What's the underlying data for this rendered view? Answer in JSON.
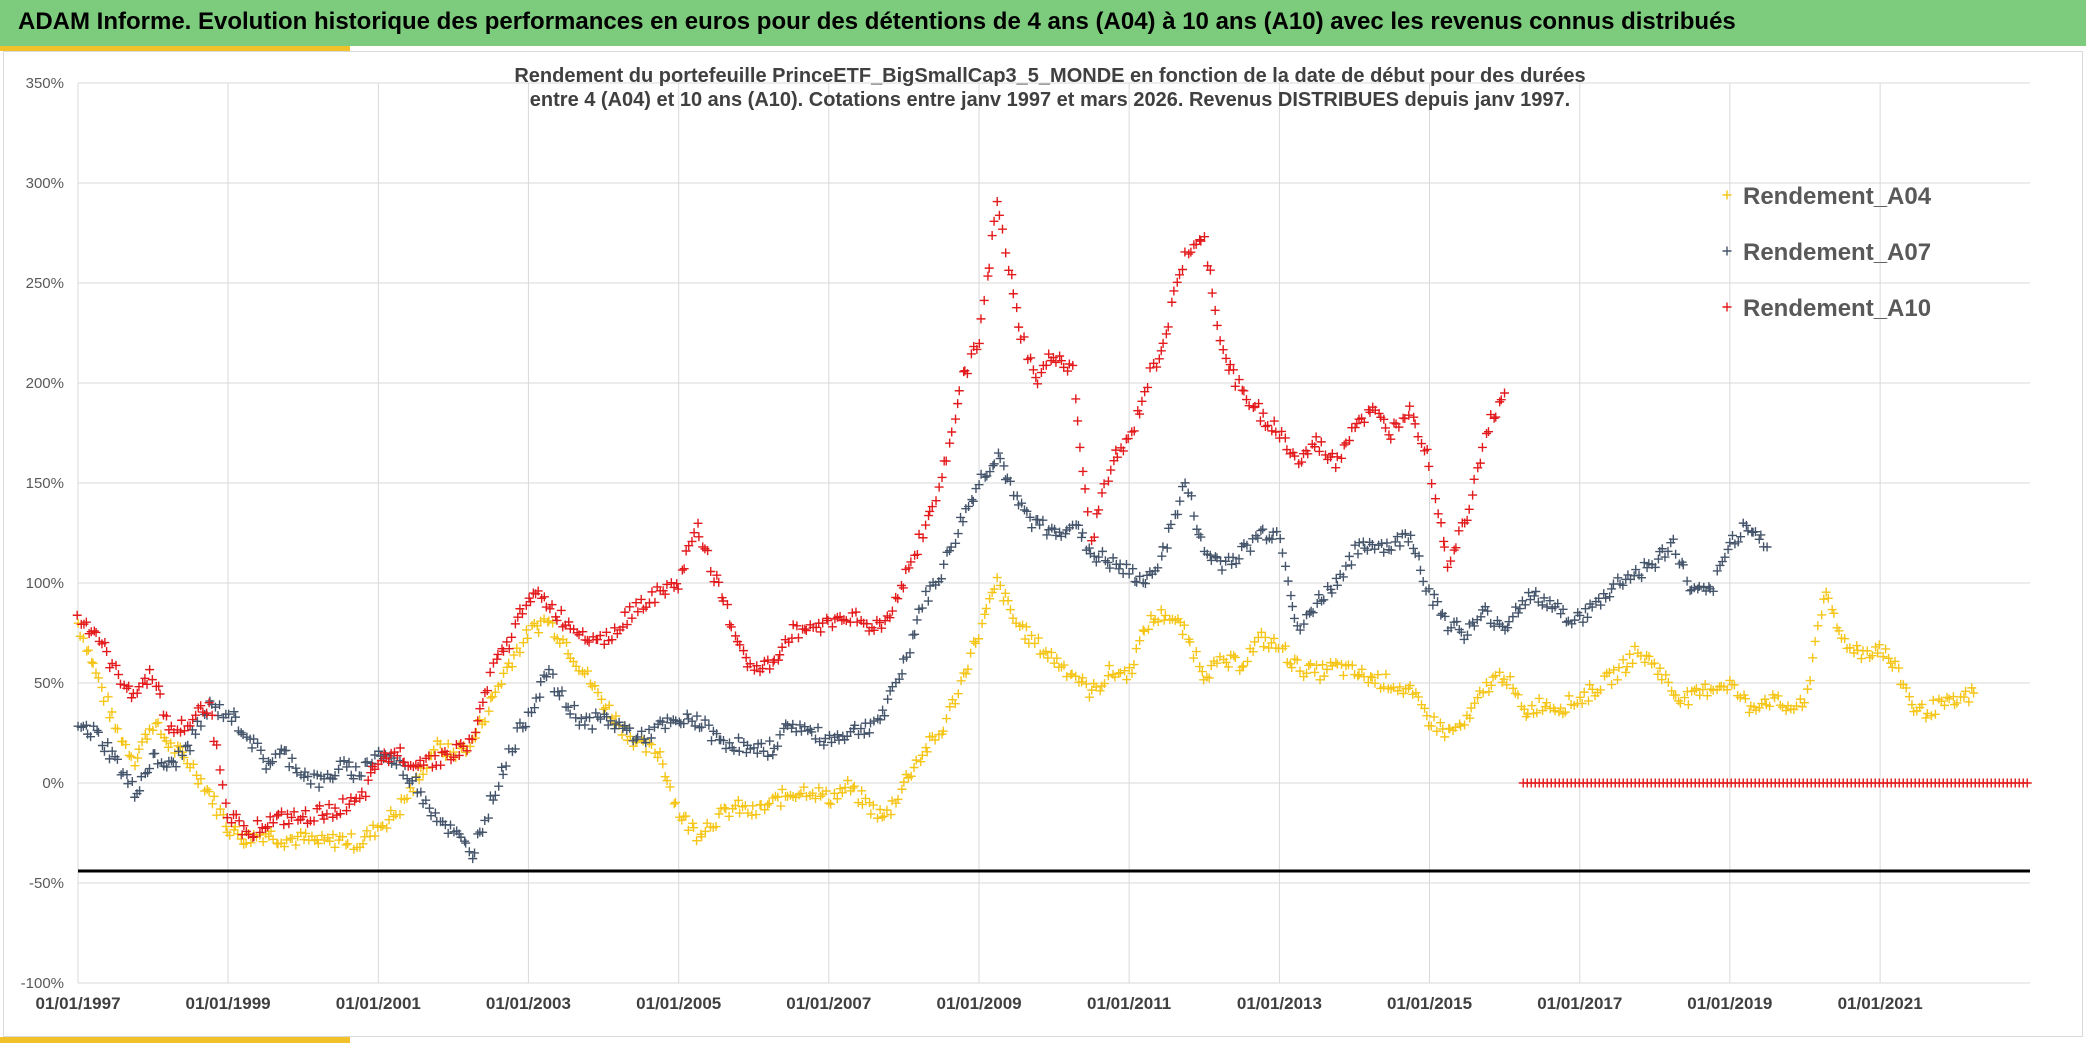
{
  "header": {
    "title": "ADAM Informe. Evolution historique des performances en euros pour des détentions de 4 ans (A04) à 10 ans (A10) avec les revenus connus distribués"
  },
  "colors": {
    "header_bg": "#7dcb7d",
    "accent": "#f2c02a",
    "A04": "#f5c518",
    "A07": "#44546a",
    "A10": "#e31a1c",
    "threshold": "#000000"
  },
  "chart_data": {
    "type": "scatter",
    "title_lines": [
      "Rendement du portefeuille PrinceETF_BigSmallCap3_5_MONDE  en fonction de la date de début pour des durées",
      "entre 4 (A04) et 10 ans (A10). Cotations entre janv 1997 et mars 2026. Revenus DISTRIBUES depuis janv 1997."
    ],
    "xlabel": "",
    "ylabel": "",
    "x_range": [
      "1997-01-01",
      "2022-12-31"
    ],
    "x_ticks": [
      "01/01/1997",
      "01/01/1999",
      "01/01/2001",
      "01/01/2003",
      "01/01/2005",
      "01/01/2007",
      "01/01/2009",
      "01/01/2011",
      "01/01/2013",
      "01/01/2015",
      "01/01/2017",
      "01/01/2019",
      "01/01/2021"
    ],
    "ylim": [
      -100,
      350
    ],
    "y_ticks": [
      -100,
      -50,
      0,
      50,
      100,
      150,
      200,
      250,
      300,
      350
    ],
    "y_tick_labels": [
      "-100%",
      "-50%",
      "0%",
      "50%",
      "100%",
      "150%",
      "200%",
      "250%",
      "300%",
      "350%"
    ],
    "grid": true,
    "legend_position": "top-right",
    "marker": "+",
    "reference_line_y": -44,
    "series": [
      {
        "name": "Rendement_A04",
        "color": "#f5c518",
        "points": [
          [
            "1997-01-01",
            80
          ],
          [
            "1997-04-01",
            55
          ],
          [
            "1997-07-01",
            28
          ],
          [
            "1997-10-01",
            12
          ],
          [
            "1998-01-01",
            30
          ],
          [
            "1998-04-01",
            18
          ],
          [
            "1998-07-01",
            10
          ],
          [
            "1998-10-01",
            -5
          ],
          [
            "1999-01-01",
            -22
          ],
          [
            "1999-04-01",
            -28
          ],
          [
            "1999-07-01",
            -25
          ],
          [
            "1999-10-01",
            -28
          ],
          [
            "2000-01-01",
            -28
          ],
          [
            "2000-04-01",
            -30
          ],
          [
            "2000-07-01",
            -28
          ],
          [
            "2000-10-01",
            -30
          ],
          [
            "2001-01-01",
            -22
          ],
          [
            "2001-04-01",
            -15
          ],
          [
            "2001-07-01",
            0
          ],
          [
            "2001-10-01",
            18
          ],
          [
            "2002-01-01",
            15
          ],
          [
            "2002-04-01",
            20
          ],
          [
            "2002-07-01",
            40
          ],
          [
            "2002-10-01",
            60
          ],
          [
            "2003-01-01",
            75
          ],
          [
            "2003-04-01",
            82
          ],
          [
            "2003-07-01",
            70
          ],
          [
            "2003-10-01",
            55
          ],
          [
            "2004-01-01",
            40
          ],
          [
            "2004-04-01",
            28
          ],
          [
            "2004-07-01",
            18
          ],
          [
            "2004-10-01",
            15
          ],
          [
            "2005-01-01",
            -15
          ],
          [
            "2005-04-01",
            -25
          ],
          [
            "2005-07-01",
            -18
          ],
          [
            "2005-10-01",
            -12
          ],
          [
            "2006-01-01",
            -15
          ],
          [
            "2006-04-01",
            -10
          ],
          [
            "2006-07-01",
            -5
          ],
          [
            "2006-10-01",
            -3
          ],
          [
            "2007-01-01",
            -8
          ],
          [
            "2007-04-01",
            -2
          ],
          [
            "2007-07-01",
            -10
          ],
          [
            "2007-10-01",
            -18
          ],
          [
            "2008-01-01",
            0
          ],
          [
            "2008-04-01",
            15
          ],
          [
            "2008-07-01",
            25
          ],
          [
            "2008-10-01",
            50
          ],
          [
            "2009-01-01",
            75
          ],
          [
            "2009-04-01",
            100
          ],
          [
            "2009-07-01",
            80
          ],
          [
            "2009-10-01",
            70
          ],
          [
            "2010-01-01",
            62
          ],
          [
            "2010-04-01",
            55
          ],
          [
            "2010-07-01",
            45
          ],
          [
            "2010-10-01",
            55
          ],
          [
            "2011-01-01",
            55
          ],
          [
            "2011-04-01",
            80
          ],
          [
            "2011-07-01",
            85
          ],
          [
            "2011-10-01",
            75
          ],
          [
            "2012-01-01",
            55
          ],
          [
            "2012-04-01",
            60
          ],
          [
            "2012-07-01",
            60
          ],
          [
            "2012-10-01",
            72
          ],
          [
            "2013-01-01",
            68
          ],
          [
            "2013-04-01",
            58
          ],
          [
            "2013-07-01",
            55
          ],
          [
            "2013-10-01",
            58
          ],
          [
            "2014-01-01",
            55
          ],
          [
            "2014-04-01",
            52
          ],
          [
            "2014-07-01",
            50
          ],
          [
            "2014-10-01",
            45
          ],
          [
            "2015-01-01",
            32
          ],
          [
            "2015-04-01",
            25
          ],
          [
            "2015-07-01",
            30
          ],
          [
            "2015-10-01",
            48
          ],
          [
            "2016-01-01",
            55
          ],
          [
            "2016-04-01",
            35
          ],
          [
            "2016-07-01",
            40
          ],
          [
            "2016-10-01",
            38
          ],
          [
            "2017-01-01",
            42
          ],
          [
            "2017-04-01",
            48
          ],
          [
            "2017-07-01",
            55
          ],
          [
            "2017-10-01",
            65
          ],
          [
            "2018-01-01",
            60
          ],
          [
            "2018-04-01",
            45
          ],
          [
            "2018-07-01",
            42
          ],
          [
            "2018-10-01",
            48
          ],
          [
            "2019-01-01",
            50
          ],
          [
            "2019-04-01",
            38
          ],
          [
            "2019-07-01",
            42
          ],
          [
            "2019-10-01",
            38
          ],
          [
            "2020-01-01",
            38
          ],
          [
            "2020-04-01",
            95
          ],
          [
            "2020-07-01",
            72
          ],
          [
            "2020-10-01",
            65
          ],
          [
            "2021-01-01",
            68
          ],
          [
            "2021-04-01",
            55
          ],
          [
            "2021-07-01",
            35
          ],
          [
            "2021-10-01",
            38
          ],
          [
            "2022-01-01",
            40
          ],
          [
            "2022-04-01",
            45
          ]
        ]
      },
      {
        "name": "Rendement_A07",
        "color": "#44546a",
        "points": [
          [
            "1997-01-01",
            28
          ],
          [
            "1997-04-01",
            25
          ],
          [
            "1997-07-01",
            12
          ],
          [
            "1997-10-01",
            -5
          ],
          [
            "1998-01-01",
            12
          ],
          [
            "1998-04-01",
            8
          ],
          [
            "1998-07-01",
            20
          ],
          [
            "1998-10-01",
            38
          ],
          [
            "1999-01-01",
            35
          ],
          [
            "1999-04-01",
            25
          ],
          [
            "1999-07-01",
            10
          ],
          [
            "1999-10-01",
            15
          ],
          [
            "2000-01-01",
            5
          ],
          [
            "2000-04-01",
            0
          ],
          [
            "2000-07-01",
            8
          ],
          [
            "2000-10-01",
            5
          ],
          [
            "2001-01-01",
            15
          ],
          [
            "2001-04-01",
            10
          ],
          [
            "2001-07-01",
            0
          ],
          [
            "2001-10-01",
            -15
          ],
          [
            "2002-01-01",
            -25
          ],
          [
            "2002-04-01",
            -35
          ],
          [
            "2002-07-01",
            -10
          ],
          [
            "2002-10-01",
            15
          ],
          [
            "2003-01-01",
            35
          ],
          [
            "2003-04-01",
            55
          ],
          [
            "2003-07-01",
            40
          ],
          [
            "2003-10-01",
            30
          ],
          [
            "2004-01-01",
            32
          ],
          [
            "2004-04-01",
            28
          ],
          [
            "2004-07-01",
            22
          ],
          [
            "2004-10-01",
            28
          ],
          [
            "2005-01-01",
            30
          ],
          [
            "2005-04-01",
            32
          ],
          [
            "2005-07-01",
            22
          ],
          [
            "2005-10-01",
            20
          ],
          [
            "2006-01-01",
            15
          ],
          [
            "2006-04-01",
            18
          ],
          [
            "2006-07-01",
            30
          ],
          [
            "2006-10-01",
            25
          ],
          [
            "2007-01-01",
            22
          ],
          [
            "2007-04-01",
            25
          ],
          [
            "2007-07-01",
            28
          ],
          [
            "2007-10-01",
            35
          ],
          [
            "2008-01-01",
            60
          ],
          [
            "2008-04-01",
            90
          ],
          [
            "2008-07-01",
            105
          ],
          [
            "2008-10-01",
            130
          ],
          [
            "2009-01-01",
            150
          ],
          [
            "2009-04-01",
            165
          ],
          [
            "2009-07-01",
            140
          ],
          [
            "2009-10-01",
            130
          ],
          [
            "2010-01-01",
            125
          ],
          [
            "2010-04-01",
            130
          ],
          [
            "2010-07-01",
            115
          ],
          [
            "2010-10-01",
            110
          ],
          [
            "2011-01-01",
            105
          ],
          [
            "2011-04-01",
            100
          ],
          [
            "2011-07-01",
            120
          ],
          [
            "2011-10-01",
            150
          ],
          [
            "2012-01-01",
            115
          ],
          [
            "2012-04-01",
            110
          ],
          [
            "2012-07-01",
            115
          ],
          [
            "2012-10-01",
            125
          ],
          [
            "2013-01-01",
            125
          ],
          [
            "2013-04-01",
            75
          ],
          [
            "2013-07-01",
            90
          ],
          [
            "2013-10-01",
            100
          ],
          [
            "2014-01-01",
            115
          ],
          [
            "2014-04-01",
            120
          ],
          [
            "2014-07-01",
            118
          ],
          [
            "2014-10-01",
            125
          ],
          [
            "2015-01-01",
            95
          ],
          [
            "2015-04-01",
            80
          ],
          [
            "2015-07-01",
            75
          ],
          [
            "2015-10-01",
            85
          ],
          [
            "2016-01-01",
            78
          ],
          [
            "2016-04-01",
            92
          ],
          [
            "2016-07-01",
            92
          ],
          [
            "2016-10-01",
            85
          ],
          [
            "2017-01-01",
            82
          ],
          [
            "2017-04-01",
            90
          ],
          [
            "2017-07-01",
            100
          ],
          [
            "2017-10-01",
            105
          ],
          [
            "2018-01-01",
            110
          ],
          [
            "2018-04-01",
            120
          ],
          [
            "2018-07-01",
            95
          ],
          [
            "2018-10-01",
            95
          ],
          [
            "2019-01-01",
            120
          ],
          [
            "2019-04-01",
            130
          ],
          [
            "2019-07-01",
            118
          ]
        ]
      },
      {
        "name": "Rendement_A10",
        "color": "#e31a1c",
        "points": [
          [
            "1997-01-01",
            82
          ],
          [
            "1997-04-01",
            75
          ],
          [
            "1997-07-01",
            55
          ],
          [
            "1997-10-01",
            45
          ],
          [
            "1998-01-01",
            55
          ],
          [
            "1998-04-01",
            25
          ],
          [
            "1998-07-01",
            30
          ],
          [
            "1998-10-01",
            40
          ],
          [
            "1999-01-01",
            -15
          ],
          [
            "1999-04-01",
            -25
          ],
          [
            "1999-07-01",
            -20
          ],
          [
            "1999-10-01",
            -18
          ],
          [
            "2000-01-01",
            -18
          ],
          [
            "2000-04-01",
            -15
          ],
          [
            "2000-07-01",
            -12
          ],
          [
            "2000-10-01",
            -10
          ],
          [
            "2001-01-01",
            10
          ],
          [
            "2001-04-01",
            15
          ],
          [
            "2001-07-01",
            10
          ],
          [
            "2001-10-01",
            12
          ],
          [
            "2002-01-01",
            15
          ],
          [
            "2002-04-01",
            20
          ],
          [
            "2002-07-01",
            55
          ],
          [
            "2002-10-01",
            70
          ],
          [
            "2003-01-01",
            95
          ],
          [
            "2003-04-01",
            90
          ],
          [
            "2003-07-01",
            80
          ],
          [
            "2003-10-01",
            75
          ],
          [
            "2004-01-01",
            72
          ],
          [
            "2004-04-01",
            80
          ],
          [
            "2004-07-01",
            90
          ],
          [
            "2004-10-01",
            95
          ],
          [
            "2005-01-01",
            100
          ],
          [
            "2005-04-01",
            130
          ],
          [
            "2005-07-01",
            100
          ],
          [
            "2005-10-01",
            75
          ],
          [
            "2006-01-01",
            55
          ],
          [
            "2006-04-01",
            60
          ],
          [
            "2006-07-01",
            75
          ],
          [
            "2006-10-01",
            78
          ],
          [
            "2007-01-01",
            80
          ],
          [
            "2007-04-01",
            85
          ],
          [
            "2007-07-01",
            78
          ],
          [
            "2007-10-01",
            80
          ],
          [
            "2008-01-01",
            100
          ],
          [
            "2008-04-01",
            125
          ],
          [
            "2008-07-01",
            150
          ],
          [
            "2008-10-01",
            200
          ],
          [
            "2009-01-01",
            220
          ],
          [
            "2009-04-01",
            290
          ],
          [
            "2009-07-01",
            235
          ],
          [
            "2009-10-01",
            200
          ],
          [
            "2010-01-01",
            215
          ],
          [
            "2010-04-01",
            205
          ],
          [
            "2010-07-01",
            120
          ],
          [
            "2010-10-01",
            160
          ],
          [
            "2011-01-01",
            170
          ],
          [
            "2011-04-01",
            200
          ],
          [
            "2011-07-01",
            225
          ],
          [
            "2011-10-01",
            265
          ],
          [
            "2012-01-01",
            270
          ],
          [
            "2012-04-01",
            215
          ],
          [
            "2012-07-01",
            195
          ],
          [
            "2012-10-01",
            185
          ],
          [
            "2013-01-01",
            175
          ],
          [
            "2013-04-01",
            160
          ],
          [
            "2013-07-01",
            170
          ],
          [
            "2013-10-01",
            160
          ],
          [
            "2014-01-01",
            180
          ],
          [
            "2014-04-01",
            185
          ],
          [
            "2014-07-01",
            175
          ],
          [
            "2014-10-01",
            190
          ],
          [
            "2015-01-01",
            160
          ],
          [
            "2015-04-01",
            110
          ],
          [
            "2015-07-01",
            135
          ],
          [
            "2015-10-01",
            175
          ],
          [
            "2016-01-01",
            195
          ]
        ]
      },
      {
        "name": "",
        "color": "#e31a1c",
        "points": [
          [
            "2016-04-01",
            0
          ],
          [
            "2022-12-31",
            0
          ]
        ],
        "style": "flat-dense"
      }
    ]
  }
}
